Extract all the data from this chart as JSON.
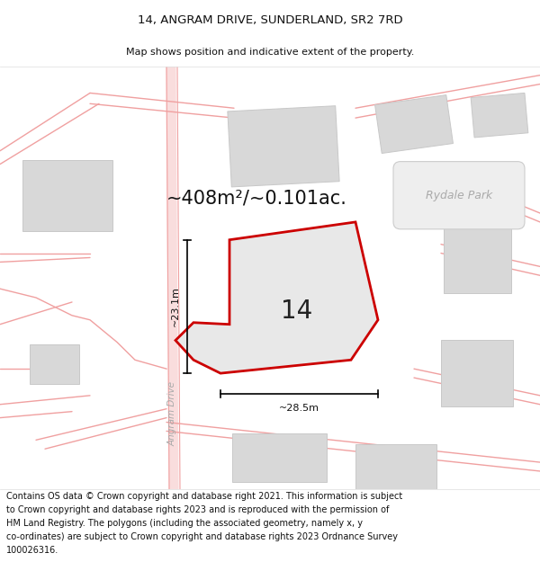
{
  "title_line1": "14, ANGRAM DRIVE, SUNDERLAND, SR2 7RD",
  "title_line2": "Map shows position and indicative extent of the property.",
  "area_text": "~408m²/~0.101ac.",
  "label_number": "14",
  "dim_horizontal": "~28.5m",
  "dim_vertical": "~23.1m",
  "road_label": "Angram Drive",
  "park_label": "Rydale Park",
  "footer_lines": [
    "Contains OS data © Crown copyright and database right 2021. This information is subject",
    "to Crown copyright and database rights 2023 and is reproduced with the permission of",
    "HM Land Registry. The polygons (including the associated geometry, namely x, y",
    "co-ordinates) are subject to Crown copyright and database rights 2023 Ordnance Survey",
    "100026316."
  ],
  "bg_color": "#ffffff",
  "map_bg": "#f7f7f7",
  "plot_fill": "#e8e8e8",
  "plot_edge": "#cc0000",
  "road_color": "#f0a0a0",
  "building_fill": "#d8d8d8",
  "building_edge": "#c8c8c8",
  "title_fontsize": 9.5,
  "subtitle_fontsize": 8.0,
  "area_fontsize": 15,
  "label_fontsize": 20,
  "footer_fontsize": 7.0,
  "road_label_fontsize": 7.5,
  "park_label_fontsize": 9
}
